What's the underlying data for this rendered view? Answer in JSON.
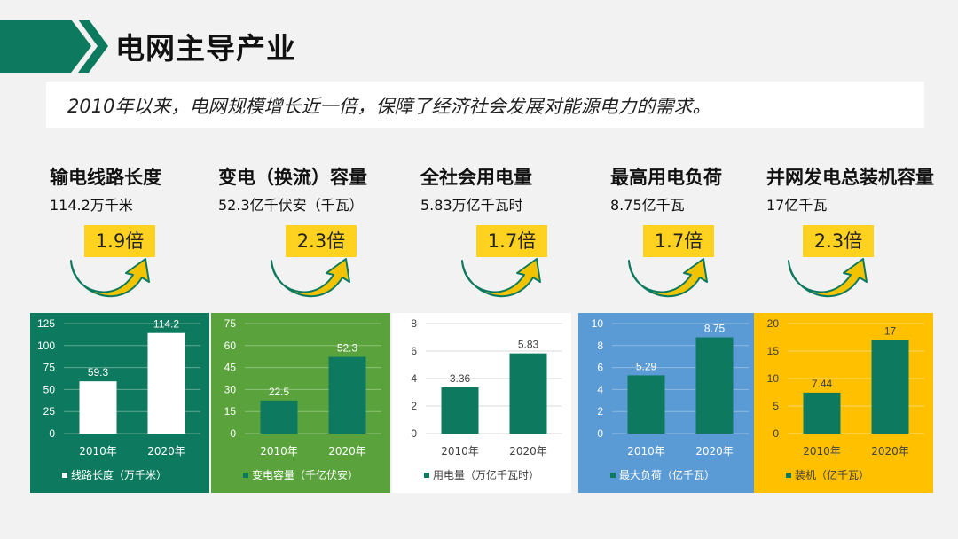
{
  "header": {
    "title": "电网主导产业"
  },
  "summary": "2010年以来，电网规模增长近一倍，保障了经济社会发展对能源电力的需求。",
  "metrics": [
    {
      "name": "输电线路长度",
      "value": "114.2万千米",
      "ratio": "1.9倍"
    },
    {
      "name": "变电（换流）容量",
      "value": "52.3亿千伏安（千瓦）",
      "ratio": "2.3倍"
    },
    {
      "name": "全社会用电量",
      "value": "5.83万亿千瓦时",
      "ratio": "1.7倍"
    },
    {
      "name": "最高用电负荷",
      "value": "8.75亿千瓦",
      "ratio": "1.7倍"
    },
    {
      "name": "并网发电总装机容量",
      "value": "17亿千瓦",
      "ratio": "2.3倍"
    }
  ],
  "colors": {
    "accent_green": "#0d7a5f",
    "light_green": "#5aa33c",
    "blue": "#5b9bd5",
    "gold": "#ffc000",
    "ratio_bg": "#ffd21f",
    "arrow": "#f2c300"
  },
  "chart_data": [
    {
      "type": "bar",
      "categories": [
        "2010年",
        "2020年"
      ],
      "series": [
        {
          "name": "线路长度（万千米）",
          "values": [
            59.3,
            114.2
          ]
        }
      ],
      "ylim": [
        0,
        125
      ],
      "yticks": [
        0,
        25,
        50,
        75,
        100,
        125
      ],
      "grid": true,
      "legend": "bottom",
      "colors": {
        "bg": "#0d7a5f",
        "bar": "#ffffff",
        "text": "#ffffff",
        "grid": "#5fa792"
      }
    },
    {
      "type": "bar",
      "categories": [
        "2010年",
        "2020年"
      ],
      "series": [
        {
          "name": "变电容量（千亿伏安）",
          "values": [
            22.5,
            52.3
          ]
        }
      ],
      "ylim": [
        0,
        75
      ],
      "yticks": [
        0,
        15,
        30,
        45,
        60,
        75
      ],
      "grid": true,
      "legend": "bottom",
      "colors": {
        "bg": "#5aa33c",
        "bar": "#0d7a5f",
        "text": "#ffffff",
        "grid": "#8cc277"
      }
    },
    {
      "type": "bar",
      "categories": [
        "2010年",
        "2020年"
      ],
      "series": [
        {
          "name": "用电量（万亿千瓦时）",
          "values": [
            3.36,
            5.83
          ]
        }
      ],
      "ylim": [
        0,
        8
      ],
      "yticks": [
        0,
        2,
        4,
        6,
        8
      ],
      "grid": true,
      "legend": "bottom",
      "colors": {
        "bg": "#ffffff",
        "bar": "#0d7a5f",
        "text": "#404040",
        "grid": "#d9d9d9"
      }
    },
    {
      "type": "bar",
      "categories": [
        "2010年",
        "2020年"
      ],
      "series": [
        {
          "name": "最大负荷（亿千瓦）",
          "values": [
            5.29,
            8.75
          ]
        }
      ],
      "ylim": [
        0,
        10
      ],
      "yticks": [
        0,
        2,
        4,
        6,
        8,
        10
      ],
      "grid": true,
      "legend": "bottom",
      "colors": {
        "bg": "#5b9bd5",
        "bar": "#0d7a5f",
        "text": "#ffffff",
        "grid": "#8db9e3"
      }
    },
    {
      "type": "bar",
      "categories": [
        "2010年",
        "2020年"
      ],
      "series": [
        {
          "name": "装机（亿千瓦）",
          "values": [
            7.44,
            17
          ]
        }
      ],
      "ylim": [
        0,
        20
      ],
      "yticks": [
        0,
        5,
        10,
        15,
        20
      ],
      "grid": true,
      "legend": "bottom",
      "colors": {
        "bg": "#ffc000",
        "bar": "#0d7a5f",
        "text": "#404040",
        "grid": "#ffd966"
      }
    }
  ]
}
